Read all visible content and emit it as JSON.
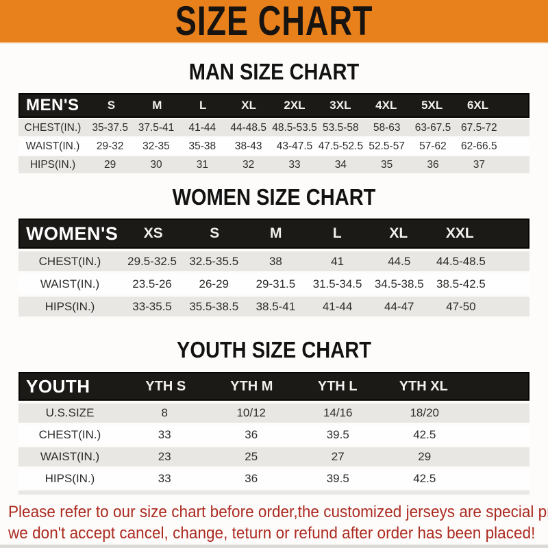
{
  "banner": {
    "title": "SIZE CHART"
  },
  "colors": {
    "banner_bg": "#E8811C",
    "banner_text": "#171310",
    "header_bar_bg": "#1C1A17",
    "header_bar_text": "#FFFFFF",
    "shaded_row_bg": "#E8E7E4",
    "table_text": "#2E2C2A",
    "note_text": "#AC2A21"
  },
  "sections": {
    "men": {
      "title": "MAN SIZE CHART",
      "table": {
        "corner_label": "MEN'S",
        "columns": [
          "S",
          "M",
          "L",
          "XL",
          "2XL",
          "3XL",
          "4XL",
          "5XL",
          "6XL"
        ],
        "rows": [
          {
            "label": "CHEST(IN.)",
            "values": [
              "35-37.5",
              "37.5-41",
              "41-44",
              "44-48.5",
              "48.5-53.5",
              "53.5-58",
              "58-63",
              "63-67.5",
              "67.5-72"
            ]
          },
          {
            "label": "WAIST(IN.)",
            "values": [
              "29-32",
              "32-35",
              "35-38",
              "38-43",
              "43-47.5",
              "47.5-52.5",
              "52.5-57",
              "57-62",
              "62-66.5"
            ]
          },
          {
            "label": "HIPS(IN.)",
            "values": [
              "29",
              "30",
              "31",
              "32",
              "33",
              "34",
              "35",
              "36",
              "37"
            ]
          }
        ]
      }
    },
    "women": {
      "title": "WOMEN SIZE CHART",
      "table": {
        "corner_label": "WOMEN'S",
        "columns": [
          "XS",
          "S",
          "M",
          "L",
          "XL",
          "XXL"
        ],
        "rows": [
          {
            "label": "CHEST(IN.)",
            "values": [
              "29.5-32.5",
              "32.5-35.5",
              "38",
              "41",
              "44.5",
              "44.5-48.5"
            ]
          },
          {
            "label": "WAIST(IN.)",
            "values": [
              "23.5-26",
              "26-29",
              "29-31.5",
              "31.5-34.5",
              "34.5-38.5",
              "38.5-42.5"
            ]
          },
          {
            "label": "HIPS(IN.)",
            "values": [
              "33-35.5",
              "35.5-38.5",
              "38.5-41",
              "41-44",
              "44-47",
              "47-50"
            ]
          }
        ]
      }
    },
    "youth": {
      "title": "YOUTH SIZE CHART",
      "table": {
        "corner_label": "YOUTH",
        "columns": [
          "YTH S",
          "YTH M",
          "YTH L",
          "YTH XL"
        ],
        "rows": [
          {
            "label": "U.S.SIZE",
            "values": [
              "8",
              "10/12",
              "14/16",
              "18/20"
            ]
          },
          {
            "label": "CHEST(IN.)",
            "values": [
              "33",
              "36",
              "39.5",
              "42.5"
            ]
          },
          {
            "label": "WAIST(IN.)",
            "values": [
              "23",
              "25",
              "27",
              "29"
            ]
          },
          {
            "label": "HIPS(IN.)",
            "values": [
              "33",
              "36",
              "39.5",
              "42.5"
            ]
          }
        ]
      }
    }
  },
  "note": {
    "line1": "Please refer to our size chart before order,the customized jerseys are special products,",
    "line2": "we don't accept cancel, change, teturn or refund after order has been placed!"
  }
}
